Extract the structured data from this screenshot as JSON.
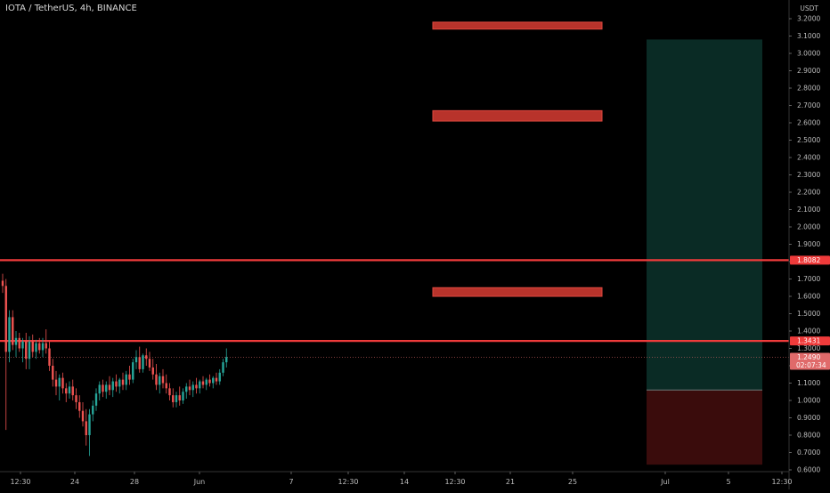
{
  "header": {
    "title": "IOTA / TetherUS, 4h, BINANCE"
  },
  "colors": {
    "background": "#000000",
    "up_candle": "#26a69a",
    "down_candle": "#ef5350",
    "resistance_line": "#ef3b3b",
    "zone_fill": "#b8332b",
    "profit_zone": "#0a2b25",
    "loss_zone": "#3a0c0c",
    "axis_text": "#bdbdbd"
  },
  "chart_data": {
    "type": "candlestick",
    "symbol": "IOTA / TetherUS",
    "interval": "4h",
    "exchange": "BINANCE",
    "price_axis": {
      "unit": "USDT",
      "min": 0.6,
      "max": 3.2,
      "ticks": [
        "0.6000",
        "0.7000",
        "0.8000",
        "0.9000",
        "1.0000",
        "1.1000",
        "1.2000",
        "1.3000",
        "1.4000",
        "1.5000",
        "1.6000",
        "1.7000",
        "1.8000",
        "1.9000",
        "2.0000",
        "2.1000",
        "2.2000",
        "2.3000",
        "2.4000",
        "2.5000",
        "2.6000",
        "2.7000",
        "2.8000",
        "2.9000",
        "3.0000",
        "3.1000",
        "3.2000"
      ]
    },
    "time_axis": {
      "ticks": [
        "12:30",
        "24",
        "28",
        "Jun",
        "7",
        "12:30",
        "14",
        "12:30",
        "21",
        "25",
        "Jul",
        "5",
        "12:30"
      ]
    },
    "price_labels": [
      {
        "name": "resistance-1",
        "value": "1.8082"
      },
      {
        "name": "resistance-2",
        "value": "1.3431"
      },
      {
        "name": "last-price",
        "value": "1.2490",
        "countdown": "02:07:34"
      }
    ],
    "horizontal_lines": [
      1.8082,
      1.3431
    ],
    "last_price": 1.249,
    "target_zones": [
      {
        "low": 3.14,
        "high": 3.18
      },
      {
        "low": 2.61,
        "high": 2.67
      },
      {
        "low": 1.6,
        "high": 1.65
      }
    ],
    "position": {
      "entry": 1.06,
      "target": 3.08,
      "stop": 0.63
    },
    "candles": [
      [
        1.69,
        1.73,
        1.62,
        1.66
      ],
      [
        1.66,
        1.7,
        0.83,
        1.28
      ],
      [
        1.28,
        1.52,
        1.22,
        1.48
      ],
      [
        1.48,
        1.52,
        1.29,
        1.32
      ],
      [
        1.32,
        1.4,
        1.25,
        1.36
      ],
      [
        1.36,
        1.39,
        1.28,
        1.3
      ],
      [
        1.3,
        1.36,
        1.22,
        1.34
      ],
      [
        1.34,
        1.39,
        1.18,
        1.24
      ],
      [
        1.24,
        1.37,
        1.18,
        1.34
      ],
      [
        1.34,
        1.38,
        1.25,
        1.28
      ],
      [
        1.28,
        1.35,
        1.24,
        1.33
      ],
      [
        1.33,
        1.36,
        1.27,
        1.29
      ],
      [
        1.29,
        1.36,
        1.25,
        1.33
      ],
      [
        1.33,
        1.41,
        1.27,
        1.3
      ],
      [
        1.3,
        1.34,
        1.17,
        1.2
      ],
      [
        1.2,
        1.24,
        1.08,
        1.12
      ],
      [
        1.12,
        1.17,
        1.03,
        1.08
      ],
      [
        1.08,
        1.15,
        1.0,
        1.13
      ],
      [
        1.13,
        1.16,
        1.04,
        1.07
      ],
      [
        1.07,
        1.1,
        0.99,
        1.04
      ],
      [
        1.04,
        1.11,
        1.01,
        1.08
      ],
      [
        1.08,
        1.12,
        1.0,
        1.03
      ],
      [
        1.03,
        1.07,
        0.95,
        0.99
      ],
      [
        0.99,
        1.03,
        0.9,
        0.94
      ],
      [
        0.94,
        0.99,
        0.85,
        0.88
      ],
      [
        0.88,
        0.95,
        0.74,
        0.8
      ],
      [
        0.8,
        0.95,
        0.68,
        0.92
      ],
      [
        0.92,
        1.0,
        0.88,
        0.97
      ],
      [
        0.97,
        1.07,
        0.94,
        1.04
      ],
      [
        1.04,
        1.11,
        1.0,
        1.09
      ],
      [
        1.09,
        1.12,
        1.02,
        1.05
      ],
      [
        1.05,
        1.11,
        1.01,
        1.09
      ],
      [
        1.09,
        1.14,
        1.03,
        1.06
      ],
      [
        1.06,
        1.13,
        1.02,
        1.11
      ],
      [
        1.11,
        1.15,
        1.05,
        1.08
      ],
      [
        1.08,
        1.13,
        1.04,
        1.12
      ],
      [
        1.12,
        1.16,
        1.06,
        1.09
      ],
      [
        1.09,
        1.17,
        1.06,
        1.15
      ],
      [
        1.15,
        1.2,
        1.09,
        1.12
      ],
      [
        1.12,
        1.24,
        1.1,
        1.22
      ],
      [
        1.22,
        1.29,
        1.18,
        1.25
      ],
      [
        1.25,
        1.31,
        1.16,
        1.18
      ],
      [
        1.18,
        1.27,
        1.16,
        1.26
      ],
      [
        1.26,
        1.3,
        1.2,
        1.24
      ],
      [
        1.24,
        1.28,
        1.17,
        1.19
      ],
      [
        1.19,
        1.24,
        1.12,
        1.15
      ],
      [
        1.15,
        1.21,
        1.06,
        1.09
      ],
      [
        1.09,
        1.16,
        1.04,
        1.14
      ],
      [
        1.14,
        1.18,
        1.07,
        1.1
      ],
      [
        1.1,
        1.15,
        1.04,
        1.07
      ],
      [
        1.07,
        1.1,
        1.0,
        1.03
      ],
      [
        1.03,
        1.07,
        0.96,
        0.99
      ],
      [
        0.99,
        1.05,
        0.96,
        1.03
      ],
      [
        1.03,
        1.08,
        0.97,
        1.0
      ],
      [
        1.0,
        1.07,
        0.98,
        1.05
      ],
      [
        1.05,
        1.1,
        1.01,
        1.08
      ],
      [
        1.08,
        1.12,
        1.03,
        1.06
      ],
      [
        1.06,
        1.11,
        1.02,
        1.09
      ],
      [
        1.09,
        1.13,
        1.04,
        1.07
      ],
      [
        1.07,
        1.12,
        1.04,
        1.11
      ],
      [
        1.11,
        1.14,
        1.07,
        1.09
      ],
      [
        1.09,
        1.13,
        1.06,
        1.12
      ],
      [
        1.12,
        1.15,
        1.08,
        1.1
      ],
      [
        1.1,
        1.14,
        1.07,
        1.13
      ],
      [
        1.13,
        1.16,
        1.09,
        1.11
      ],
      [
        1.11,
        1.18,
        1.09,
        1.16
      ],
      [
        1.16,
        1.24,
        1.14,
        1.22
      ],
      [
        1.22,
        1.3,
        1.19,
        1.25
      ]
    ]
  }
}
